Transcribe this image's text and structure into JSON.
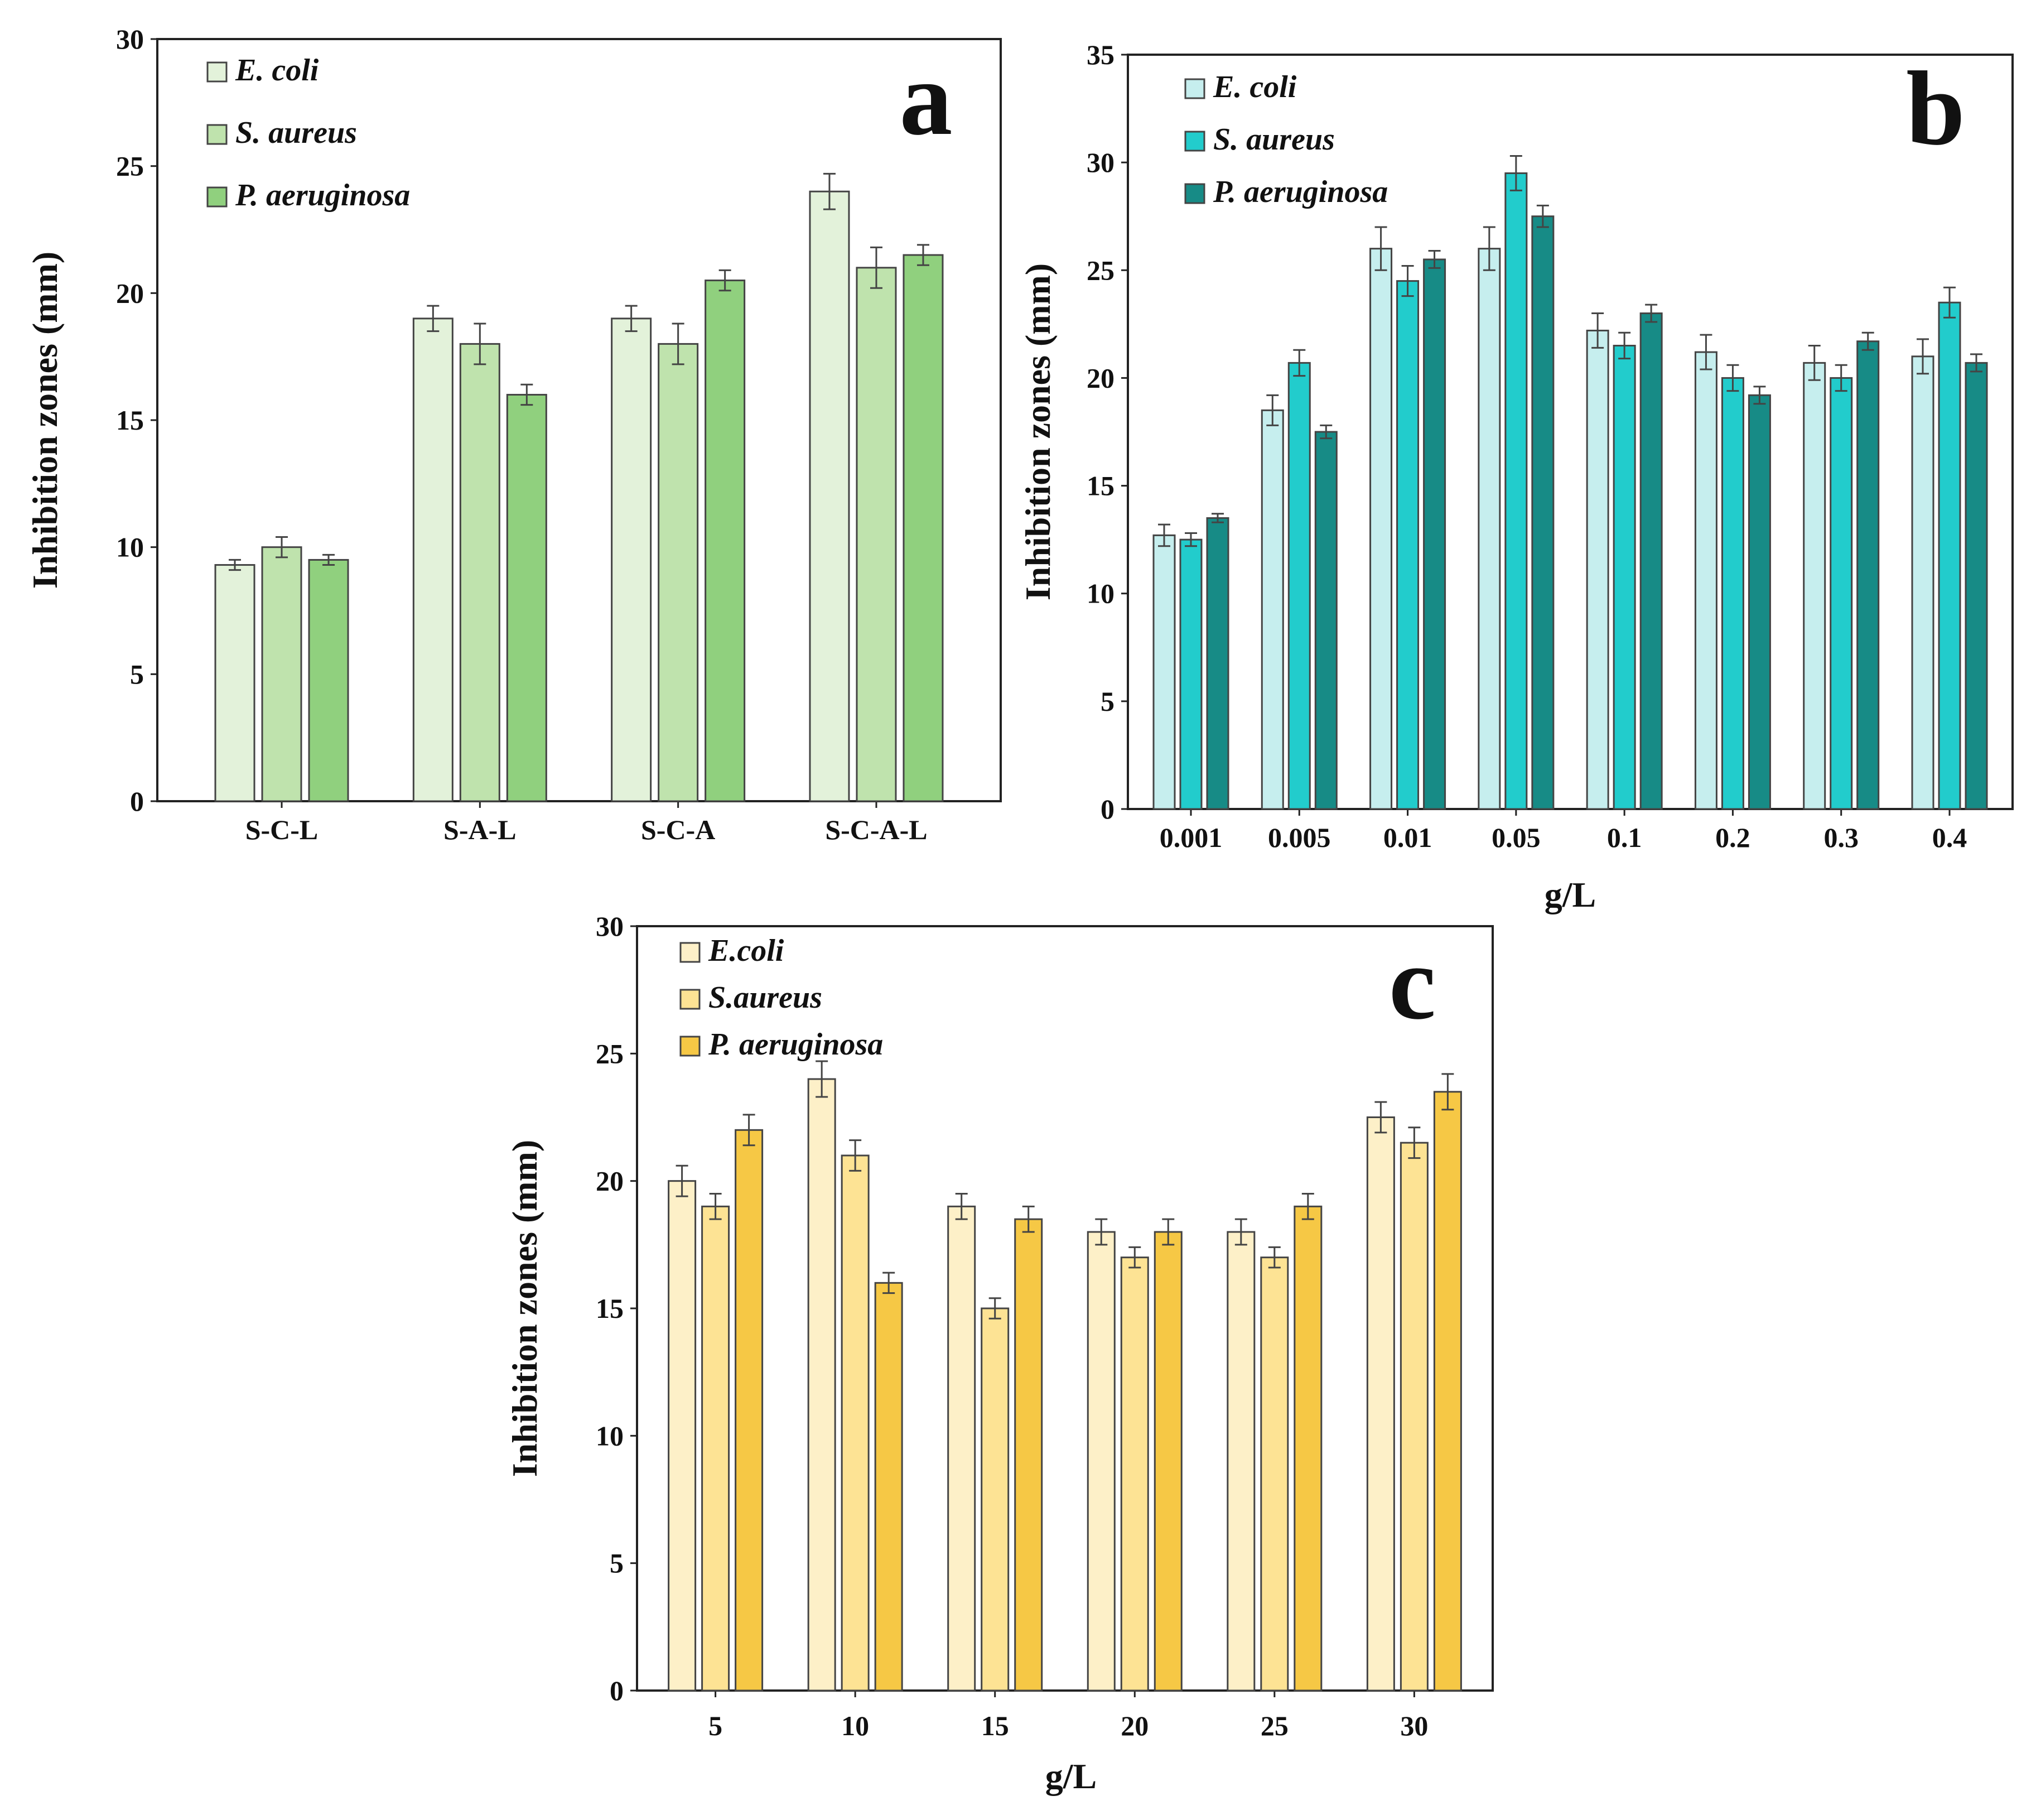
{
  "chart_data": [
    {
      "panel": "a",
      "type": "bar",
      "ylabel": "Inhibition zones (mm)",
      "xlabel": "",
      "ylim": [
        0,
        30
      ],
      "yticks": [
        0,
        5,
        10,
        15,
        20,
        25,
        30
      ],
      "categories": [
        "S-C-L",
        "S-A-L",
        "S-C-A",
        "S-C-A-L"
      ],
      "legend_position": "top-left",
      "series": [
        {
          "name": "E. coli",
          "color": "#e3f2da",
          "values": [
            9.3,
            19.0,
            19.0,
            24.0
          ],
          "errors": [
            0.2,
            0.5,
            0.5,
            0.7
          ]
        },
        {
          "name": "S. aureus",
          "color": "#bfe3ad",
          "values": [
            10.0,
            18.0,
            18.0,
            21.0
          ],
          "errors": [
            0.4,
            0.8,
            0.8,
            0.8
          ]
        },
        {
          "name": "P. aeruginosa",
          "color": "#90d07e",
          "values": [
            9.5,
            16.0,
            20.5,
            21.5
          ],
          "errors": [
            0.2,
            0.4,
            0.4,
            0.4
          ]
        }
      ]
    },
    {
      "panel": "b",
      "type": "bar",
      "ylabel": "Inhibition zones (mm)",
      "xlabel": "g/L",
      "ylim": [
        0,
        35
      ],
      "yticks": [
        0,
        5,
        10,
        15,
        20,
        25,
        30,
        35
      ],
      "categories": [
        "0.001",
        "0.005",
        "0.01",
        "0.05",
        "0.1",
        "0.2",
        "0.3",
        "0.4"
      ],
      "legend_position": "top-left",
      "series": [
        {
          "name": "E. coli",
          "color": "#c6eeee",
          "values": [
            12.7,
            18.5,
            26.0,
            26.0,
            22.2,
            21.2,
            20.7,
            21.0
          ],
          "errors": [
            0.5,
            0.7,
            1.0,
            1.0,
            0.8,
            0.8,
            0.8,
            0.8
          ]
        },
        {
          "name": "S. aureus",
          "color": "#22cccc",
          "values": [
            12.5,
            20.7,
            24.5,
            29.5,
            21.5,
            20.0,
            20.0,
            23.5
          ],
          "errors": [
            0.3,
            0.6,
            0.7,
            0.8,
            0.6,
            0.6,
            0.6,
            0.7
          ]
        },
        {
          "name": "P. aeruginosa",
          "color": "#178b86",
          "values": [
            13.5,
            17.5,
            25.5,
            27.5,
            23.0,
            19.2,
            21.7,
            20.7
          ],
          "errors": [
            0.2,
            0.3,
            0.4,
            0.5,
            0.4,
            0.4,
            0.4,
            0.4
          ]
        }
      ]
    },
    {
      "panel": "c",
      "type": "bar",
      "ylabel": "Inhibition zones (mm)",
      "xlabel": "g/L",
      "ylim": [
        0,
        30
      ],
      "yticks": [
        0,
        5,
        10,
        15,
        20,
        25,
        30
      ],
      "categories": [
        "5",
        "10",
        "15",
        "20",
        "25",
        "30"
      ],
      "legend_position": "top-left",
      "series": [
        {
          "name": "E.coli",
          "color": "#fdf0c8",
          "values": [
            20.0,
            24.0,
            19.0,
            18.0,
            18.0,
            22.5
          ],
          "errors": [
            0.6,
            0.7,
            0.5,
            0.5,
            0.5,
            0.6
          ]
        },
        {
          "name": "S.aureus",
          "color": "#fde394",
          "values": [
            19.0,
            21.0,
            15.0,
            17.0,
            17.0,
            21.5
          ],
          "errors": [
            0.5,
            0.6,
            0.4,
            0.4,
            0.4,
            0.6
          ]
        },
        {
          "name": "P. aeruginosa",
          "color": "#f6c845",
          "values": [
            22.0,
            16.0,
            18.5,
            18.0,
            19.0,
            23.5
          ],
          "errors": [
            0.6,
            0.4,
            0.5,
            0.5,
            0.5,
            0.7
          ]
        }
      ]
    }
  ]
}
